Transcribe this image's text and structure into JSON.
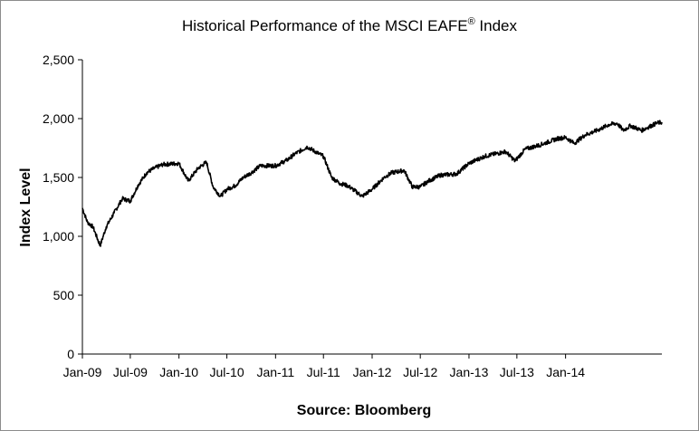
{
  "chart_data": {
    "type": "line",
    "title": "Historical Performance of the MSCI EAFE",
    "title_superscript": "®",
    "title_suffix": " Index",
    "ylabel": "Index Level",
    "xlabel": "Source: Bloomberg",
    "ylim": [
      0,
      2500
    ],
    "y_ticks": [
      0,
      500,
      1000,
      1500,
      2000,
      2500
    ],
    "y_tick_labels": [
      "0",
      "500",
      "1,000",
      "1,500",
      "2,000",
      "2,500"
    ],
    "x_range": [
      "2009-01-01",
      "2014-12-31"
    ],
    "x_ticks": [
      "2009-01-01",
      "2009-07-01",
      "2010-01-01",
      "2010-07-01",
      "2011-01-01",
      "2011-07-01",
      "2012-01-01",
      "2012-07-01",
      "2013-01-01",
      "2013-07-01",
      "2014-01-01"
    ],
    "x_tick_labels": [
      "Jan-09",
      "Jul-09",
      "Jan-10",
      "Jul-10",
      "Jan-11",
      "Jul-11",
      "Jan-12",
      "Jul-12",
      "Jan-13",
      "Jul-13",
      "Jan-14"
    ],
    "grid": false,
    "line_color": "#000000",
    "series": [
      {
        "x": [
          "2009-01-01",
          "2009-01-20",
          "2009-02-10",
          "2009-03-09",
          "2009-04-01",
          "2009-05-01",
          "2009-06-01",
          "2009-07-01",
          "2009-08-01",
          "2009-09-01",
          "2009-10-01",
          "2009-11-01",
          "2010-01-01",
          "2010-02-05",
          "2010-03-15",
          "2010-04-15",
          "2010-05-10",
          "2010-06-07",
          "2010-07-01",
          "2010-08-01",
          "2010-09-01",
          "2010-10-01",
          "2010-11-05",
          "2011-01-01",
          "2011-02-15",
          "2011-03-15",
          "2011-05-01",
          "2011-06-15",
          "2011-07-01",
          "2011-08-01",
          "2011-09-01",
          "2011-10-01",
          "2011-11-25",
          "2012-01-01",
          "2012-02-15",
          "2012-03-15",
          "2012-05-01",
          "2012-06-01",
          "2012-07-01",
          "2012-08-01",
          "2012-09-15",
          "2012-11-15",
          "2013-01-01",
          "2013-03-01",
          "2013-05-20",
          "2013-06-24",
          "2013-08-01",
          "2013-10-01",
          "2013-12-01",
          "2014-01-01",
          "2014-02-03",
          "2014-03-15",
          "2014-05-01",
          "2014-06-15",
          "2014-07-15",
          "2014-08-07",
          "2014-09-04",
          "2014-10-15",
          "2014-12-10",
          "2014-12-31"
        ],
        "values": [
          1240,
          1120,
          1080,
          920,
          1080,
          1200,
          1320,
          1300,
          1440,
          1540,
          1580,
          1610,
          1620,
          1470,
          1580,
          1630,
          1420,
          1340,
          1400,
          1430,
          1500,
          1540,
          1600,
          1600,
          1650,
          1700,
          1760,
          1700,
          1680,
          1500,
          1450,
          1430,
          1340,
          1400,
          1500,
          1540,
          1560,
          1420,
          1420,
          1470,
          1520,
          1530,
          1620,
          1680,
          1720,
          1640,
          1740,
          1780,
          1830,
          1840,
          1790,
          1860,
          1900,
          1950,
          1960,
          1900,
          1940,
          1900,
          1960,
          1970
        ]
      }
    ]
  }
}
